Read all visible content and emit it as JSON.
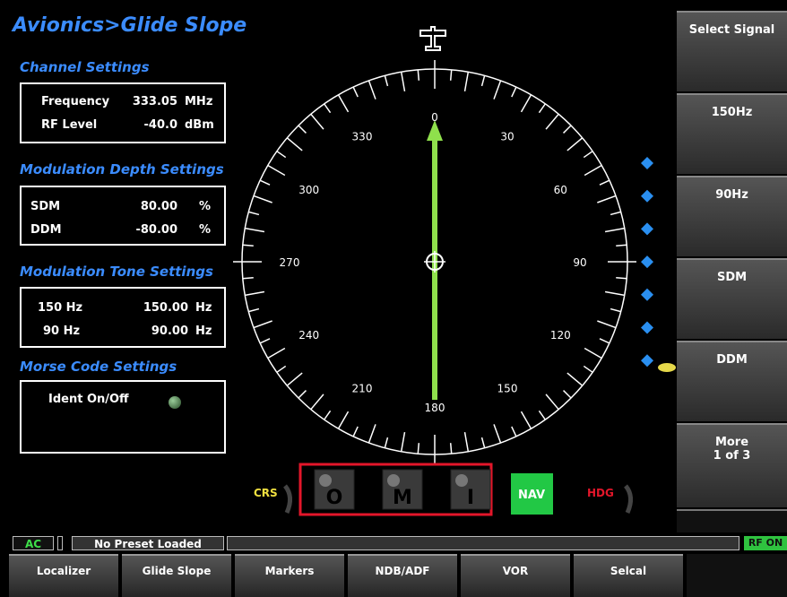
{
  "header": {
    "title": "Avionics>Glide Slope"
  },
  "channel_settings": {
    "title": "Channel Settings",
    "rows": [
      [
        "Frequency",
        "333.05",
        "MHz"
      ],
      [
        "RF Level",
        "-40.0",
        "dBm"
      ]
    ]
  },
  "modulation_depth": {
    "title": "Modulation Depth Settings",
    "rows": [
      [
        "SDM",
        "80.00",
        "%"
      ],
      [
        "DDM",
        "-80.00",
        "%"
      ]
    ]
  },
  "modulation_tone": {
    "title": "Modulation Tone Settings",
    "rows": [
      [
        "150 Hz",
        "150.00",
        "Hz"
      ],
      [
        "90 Hz",
        "90.00",
        "Hz"
      ]
    ]
  },
  "morse_code": {
    "title": "Morse Code Settings",
    "label": "Ident On/Off"
  },
  "compass": {
    "labels": [
      "0",
      "30",
      "60",
      "90",
      "120",
      "150",
      "180",
      "210",
      "240",
      "270",
      "300",
      "330"
    ]
  },
  "indicators": {
    "crs": "CRS",
    "markers": [
      "O",
      "M",
      "I"
    ],
    "nav": "NAV",
    "hdg": "HDG"
  },
  "side_buttons": [
    {
      "label": "Select Signal"
    },
    {
      "label": "150Hz"
    },
    {
      "label": "90Hz"
    },
    {
      "label": "SDM"
    },
    {
      "label": "DDM"
    },
    {
      "label": "More",
      "sublabel": "1 of 3"
    }
  ],
  "status": {
    "ac": "AC",
    "preset": "No Preset Loaded",
    "rf": "RF ON"
  },
  "tabs": [
    "Localizer",
    "Glide Slope",
    "Markers",
    "NDB/ADF",
    "VOR",
    "Selcal"
  ]
}
